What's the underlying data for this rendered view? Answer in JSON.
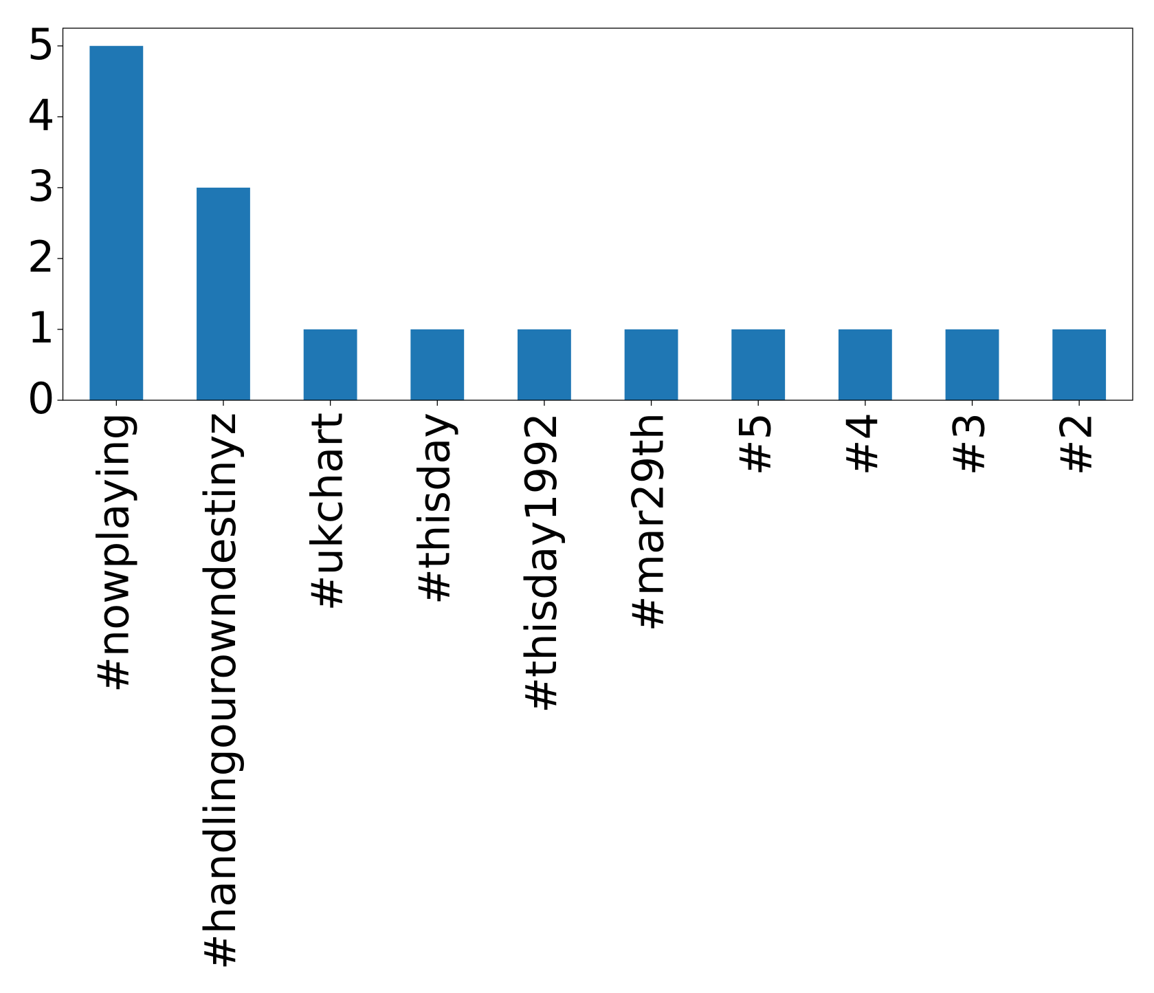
{
  "chart_data": {
    "type": "bar",
    "categories": [
      "#nowplaying",
      "#handlingourowndestinyz",
      "#ukchart",
      "#thisday",
      "#thisday1992",
      "#mar29th",
      "#5",
      "#4",
      "#3",
      "#2"
    ],
    "values": [
      5,
      3,
      1,
      1,
      1,
      1,
      1,
      1,
      1,
      1
    ],
    "color": "#1f77b4",
    "ylim": [
      0,
      5.25
    ],
    "yticks": [
      0,
      1,
      2,
      3,
      4,
      5
    ],
    "grid": false
  }
}
